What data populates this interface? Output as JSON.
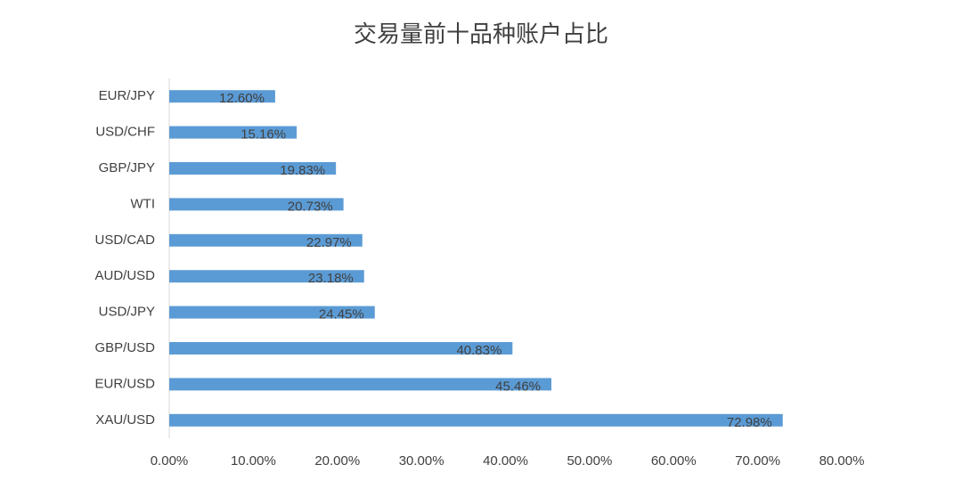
{
  "chart_data": {
    "type": "hbar",
    "title": "交易量前十品种账户占比",
    "categories": [
      "EUR/JPY",
      "USD/CHF",
      "GBP/JPY",
      "WTI",
      "USD/CAD",
      "AUD/USD",
      "USD/JPY",
      "GBP/USD",
      "EUR/USD",
      "XAU/USD"
    ],
    "values": [
      12.6,
      15.16,
      19.83,
      20.73,
      22.97,
      23.18,
      24.45,
      40.83,
      45.46,
      72.98
    ],
    "value_labels": [
      "12.60%",
      "15.16%",
      "19.83%",
      "20.73%",
      "22.97%",
      "23.18%",
      "24.45%",
      "40.83%",
      "45.46%",
      "72.98%"
    ],
    "color": "#5b9bd5",
    "xlim": [
      0,
      80
    ],
    "xticks": [
      {
        "value": 0,
        "label": "0.00%"
      },
      {
        "value": 10,
        "label": "10.00%"
      },
      {
        "value": 20,
        "label": "20.00%"
      },
      {
        "value": 30,
        "label": "30.00%"
      },
      {
        "value": 40,
        "label": "40.00%"
      },
      {
        "value": 50,
        "label": "50.00%"
      },
      {
        "value": 60,
        "label": "60.00%"
      },
      {
        "value": 70,
        "label": "70.00%"
      },
      {
        "value": 80,
        "label": "80.00%"
      }
    ],
    "grid": false
  }
}
